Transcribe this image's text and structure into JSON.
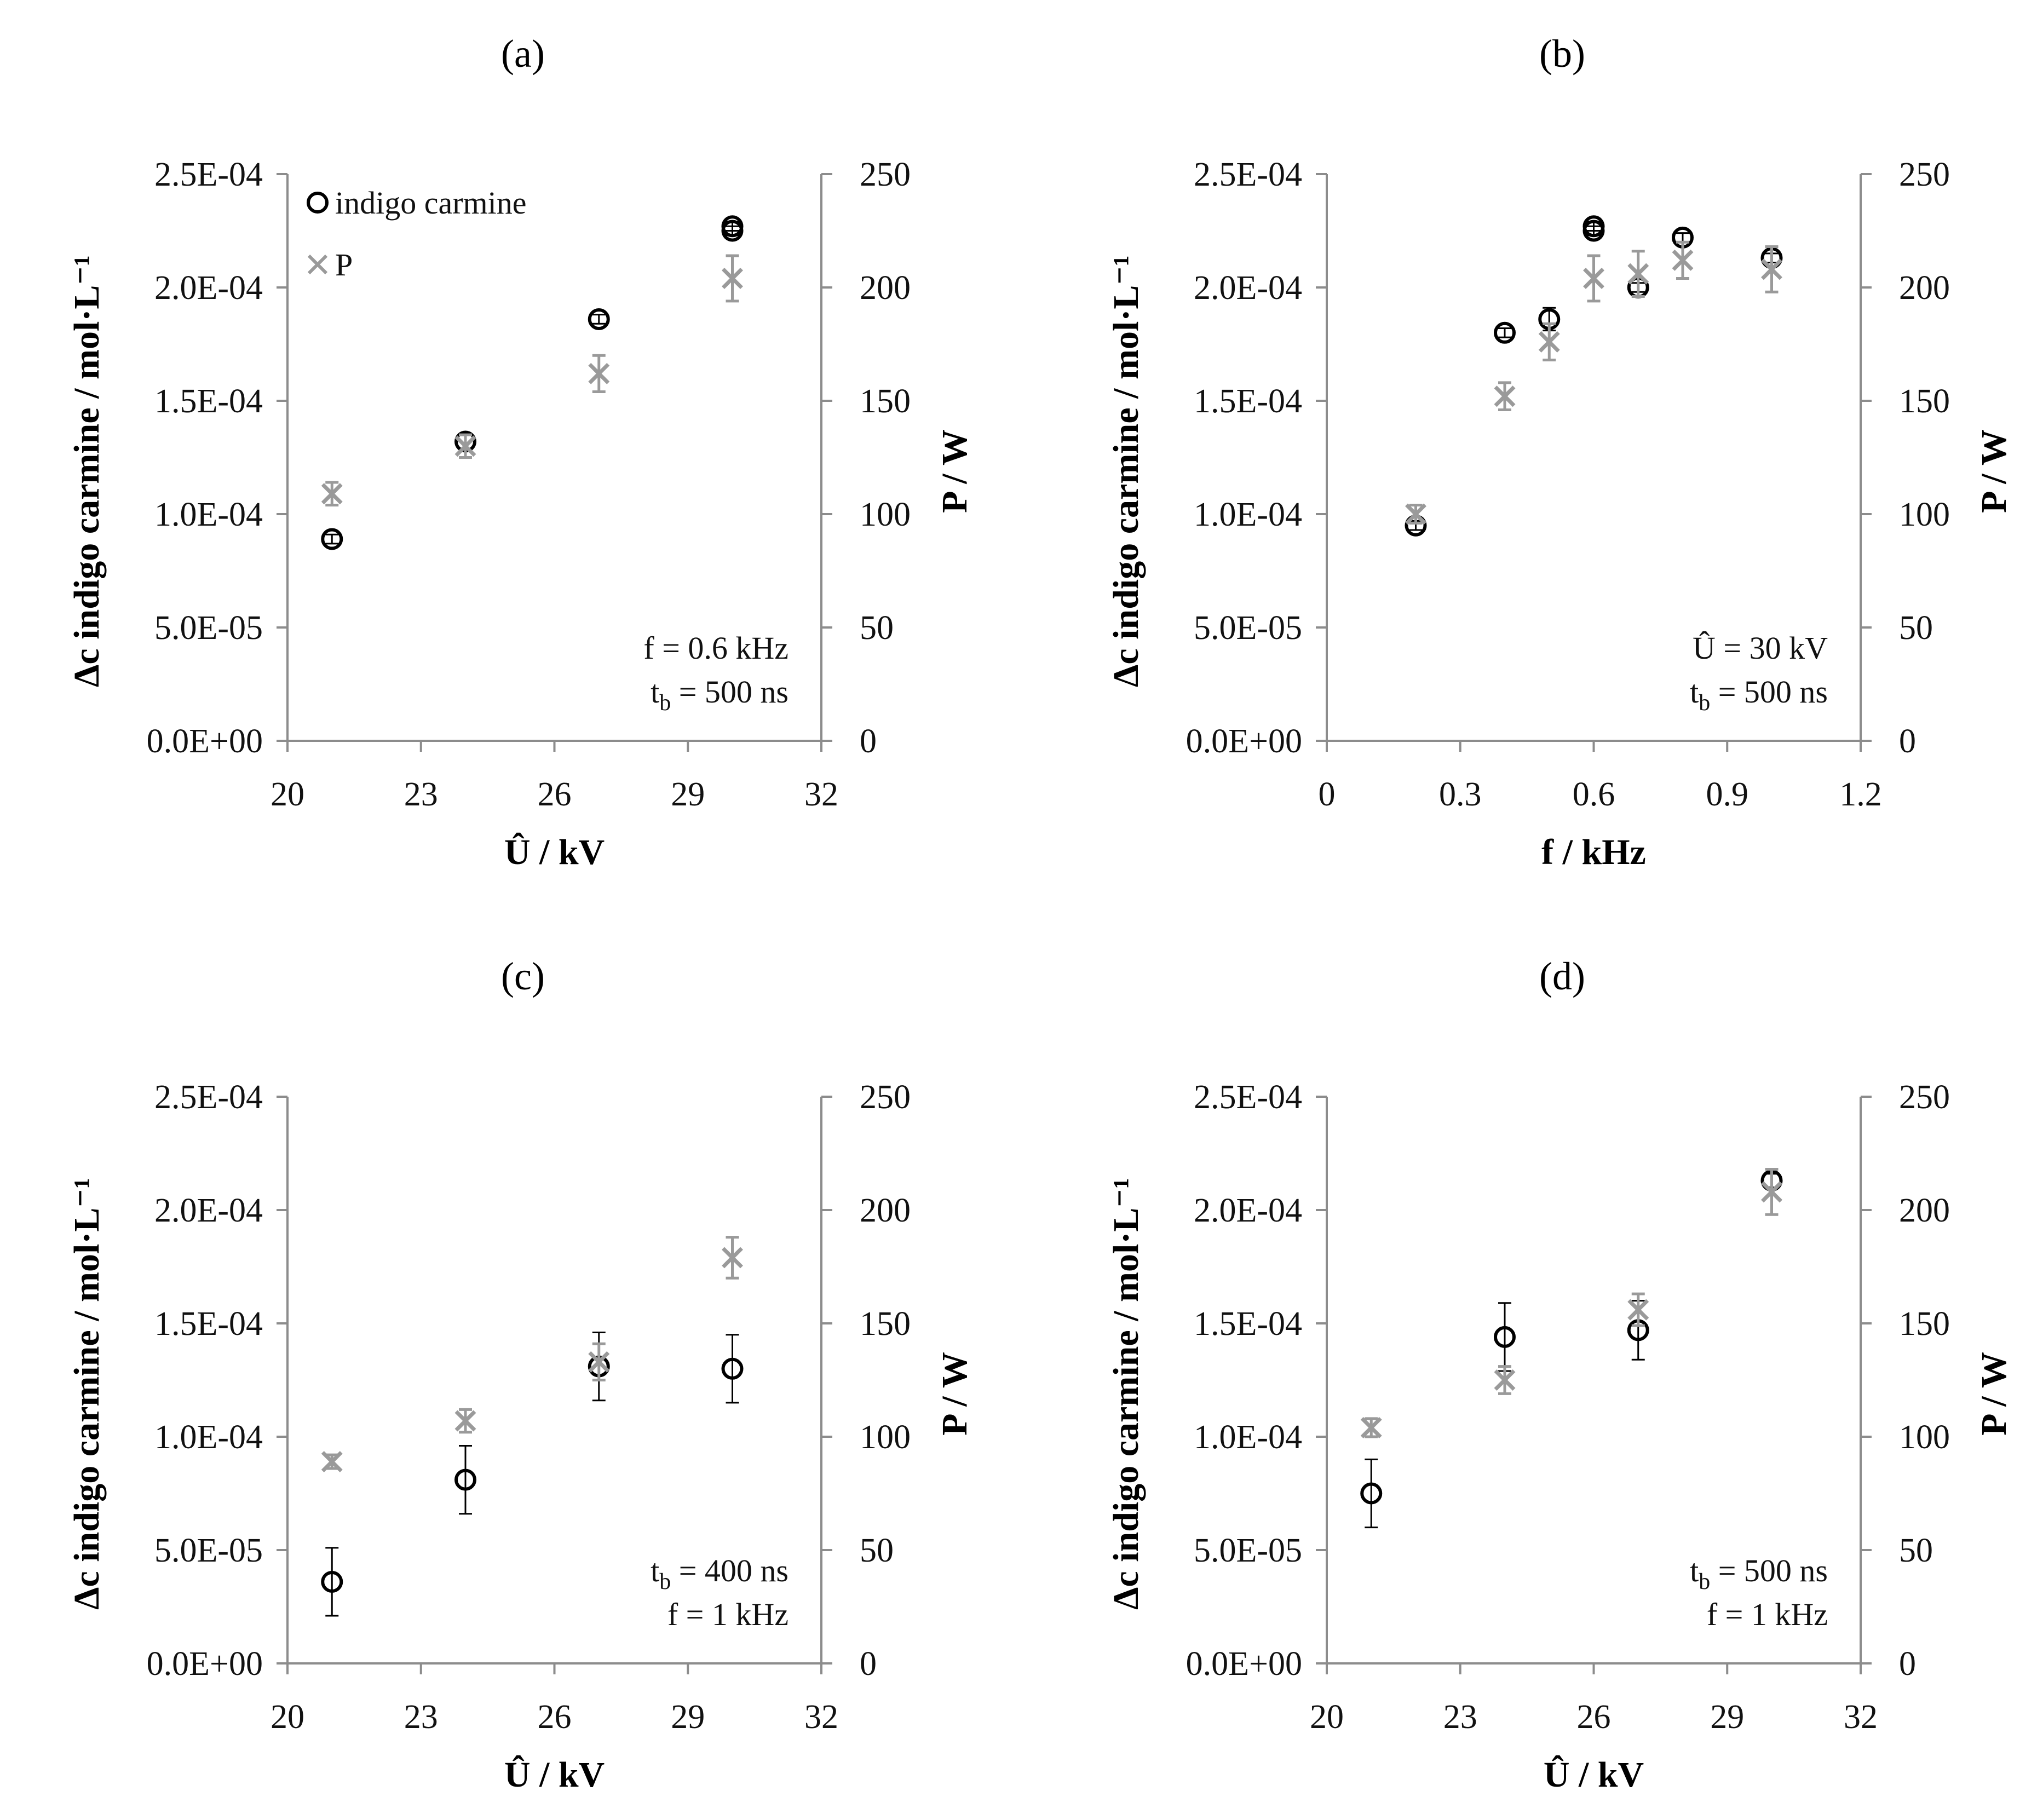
{
  "figure": {
    "colors": {
      "indigo": "#000000",
      "power": "#9a9a9a",
      "axis": "#8c8c8c",
      "text": "#111111"
    }
  },
  "chart_data": [
    {
      "id": "a",
      "type": "scatter",
      "panel_label": "(a)",
      "xlabel": "Û / kV",
      "ylabel": "Δc indigo carmine / mol·L⁻¹",
      "y2label": "P / W",
      "xlim": [
        20,
        32
      ],
      "xticks": [
        "20",
        "23",
        "26",
        "29",
        "32"
      ],
      "ylim": [
        0,
        0.00025
      ],
      "yticks": [
        "0.0E+00",
        "5.0E-05",
        "1.0E-04",
        "1.5E-04",
        "2.0E-04",
        "2.5E-04"
      ],
      "y2lim": [
        0,
        250
      ],
      "y2ticks": [
        "0",
        "50",
        "100",
        "150",
        "200",
        "250"
      ],
      "annotations": [
        [
          "f = 0.6 kHz"
        ],
        [
          "t",
          "b",
          " = 500 ns"
        ]
      ],
      "legend": {
        "position": "top-left",
        "entries": [
          "indigo carmine",
          "P"
        ]
      },
      "series": [
        {
          "name": "indigo carmine",
          "axis": "left",
          "marker": "circle",
          "x": [
            21,
            24,
            27,
            30,
            30
          ],
          "y": [
            8.9e-05,
            0.000132,
            0.000186,
            0.000225,
            0.000227
          ],
          "err": [
            2e-06,
            3e-06,
            2e-06,
            2e-06,
            2e-06
          ]
        },
        {
          "name": "P",
          "axis": "right",
          "marker": "x",
          "x": [
            21,
            24,
            27,
            30
          ],
          "y": [
            109,
            130,
            162,
            204
          ],
          "err": [
            5,
            5,
            8,
            10
          ]
        }
      ]
    },
    {
      "id": "b",
      "type": "scatter",
      "panel_label": "(b)",
      "xlabel": "f / kHz",
      "ylabel": "Δc indigo carmine / mol·L⁻¹",
      "y2label": "P / W",
      "xlim": [
        0,
        1.2
      ],
      "xticks": [
        "0",
        "0.3",
        "0.6",
        "0.9",
        "1.2"
      ],
      "ylim": [
        0,
        0.00025
      ],
      "yticks": [
        "0.0E+00",
        "5.0E-05",
        "1.0E-04",
        "1.5E-04",
        "2.0E-04",
        "2.5E-04"
      ],
      "y2lim": [
        0,
        250
      ],
      "y2ticks": [
        "0",
        "50",
        "100",
        "150",
        "200",
        "250"
      ],
      "annotations": [
        [
          "Û = 30 kV"
        ],
        [
          "t",
          "b",
          " = 500 ns"
        ]
      ],
      "series": [
        {
          "name": "indigo carmine",
          "axis": "left",
          "marker": "circle",
          "x": [
            0.2,
            0.4,
            0.5,
            0.6,
            0.6,
            0.7,
            0.8,
            1.0
          ],
          "y": [
            9.5e-05,
            0.00018,
            0.000186,
            0.000225,
            0.000227,
            0.0002,
            0.000222,
            0.000213
          ],
          "err": [
            2e-06,
            2e-06,
            5e-06,
            2e-06,
            2e-06,
            2e-06,
            2e-06,
            2e-06
          ]
        },
        {
          "name": "P",
          "axis": "right",
          "marker": "x",
          "x": [
            0.2,
            0.4,
            0.5,
            0.6,
            0.7,
            0.8,
            1.0
          ],
          "y": [
            100,
            152,
            176,
            204,
            206,
            212,
            208
          ],
          "err": [
            4,
            6,
            8,
            10,
            10,
            8,
            10
          ]
        }
      ]
    },
    {
      "id": "c",
      "type": "scatter",
      "panel_label": "(c)",
      "xlabel": "Û / kV",
      "ylabel": "Δc indigo carmine / mol·L⁻¹",
      "y2label": "P / W",
      "xlim": [
        20,
        32
      ],
      "xticks": [
        "20",
        "23",
        "26",
        "29",
        "32"
      ],
      "ylim": [
        0,
        0.00025
      ],
      "yticks": [
        "0.0E+00",
        "5.0E-05",
        "1.0E-04",
        "1.5E-04",
        "2.0E-04",
        "2.5E-04"
      ],
      "y2lim": [
        0,
        250
      ],
      "y2ticks": [
        "0",
        "50",
        "100",
        "150",
        "200",
        "250"
      ],
      "annotations": [
        [
          "t",
          "b",
          " = 400 ns"
        ],
        [
          "f = 1 kHz"
        ]
      ],
      "series": [
        {
          "name": "indigo carmine",
          "axis": "left",
          "marker": "circle",
          "x": [
            21,
            24,
            27,
            30
          ],
          "y": [
            3.6e-05,
            8.1e-05,
            0.000131,
            0.00013
          ],
          "err": [
            1.5e-05,
            1.5e-05,
            1.5e-05,
            1.5e-05
          ]
        },
        {
          "name": "P",
          "axis": "right",
          "marker": "x",
          "x": [
            21,
            24,
            27,
            30
          ],
          "y": [
            89,
            107,
            133,
            179
          ],
          "err": [
            3,
            5,
            8,
            9
          ]
        }
      ]
    },
    {
      "id": "d",
      "type": "scatter",
      "panel_label": "(d)",
      "xlabel": "Û / kV",
      "ylabel": "Δc indigo carmine / mol·L⁻¹",
      "y2label": "P / W",
      "xlim": [
        20,
        32
      ],
      "xticks": [
        "20",
        "23",
        "26",
        "29",
        "32"
      ],
      "ylim": [
        0,
        0.00025
      ],
      "yticks": [
        "0.0E+00",
        "5.0E-05",
        "1.0E-04",
        "1.5E-04",
        "2.0E-04",
        "2.5E-04"
      ],
      "y2lim": [
        0,
        250
      ],
      "y2ticks": [
        "0",
        "50",
        "100",
        "150",
        "200",
        "250"
      ],
      "annotations": [
        [
          "t",
          "b",
          " = 500 ns"
        ],
        [
          "f = 1 kHz"
        ]
      ],
      "series": [
        {
          "name": "indigo carmine",
          "axis": "left",
          "marker": "circle",
          "x": [
            21,
            24,
            27,
            30
          ],
          "y": [
            7.5e-05,
            0.000144,
            0.000147,
            0.000213
          ],
          "err": [
            1.5e-05,
            1.5e-05,
            1.3e-05,
            3e-06
          ]
        },
        {
          "name": "P",
          "axis": "right",
          "marker": "x",
          "x": [
            21,
            24,
            27,
            30
          ],
          "y": [
            104,
            125,
            156,
            208
          ],
          "err": [
            4,
            6,
            7,
            10
          ]
        }
      ]
    }
  ]
}
